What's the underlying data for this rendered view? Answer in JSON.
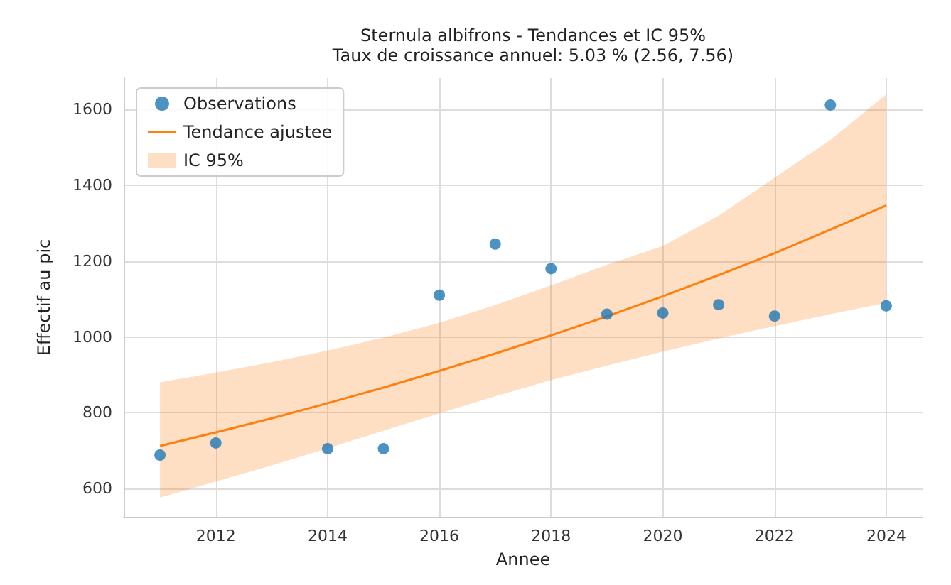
{
  "chart_data": {
    "type": "scatter",
    "title": "Sternula albifrons - Tendances et IC 95%",
    "subtitle": "Taux de croissance annuel: 5.03 % (2.56, 7.56)",
    "xlabel": "Annee",
    "ylabel": "Effectif au pic",
    "x": [
      2011,
      2012,
      2013,
      2014,
      2015,
      2016,
      2017,
      2018,
      2019,
      2020,
      2021,
      2022,
      2023,
      2024
    ],
    "series": [
      {
        "name": "Observations",
        "type": "scatter",
        "color": "#1f77b4",
        "marker": "circle",
        "x": [
          2011,
          2012,
          2014,
          2015,
          2016,
          2017,
          2018,
          2019,
          2020,
          2021,
          2022,
          2023,
          2024
        ],
        "values": [
          688,
          720,
          705,
          705,
          1110,
          1245,
          1180,
          1060,
          1063,
          1085,
          1055,
          1612,
          1082
        ]
      },
      {
        "name": "Tendance ajustee",
        "type": "line",
        "color": "#ff7f0e",
        "marker": "none",
        "values": [
          712,
          748,
          785,
          825,
          866,
          910,
          956,
          1004,
          1054,
          1107,
          1163,
          1221,
          1283,
          1347
        ],
        "lower": [
          576,
          618,
          661,
          706,
          752,
          798,
          843,
          886,
          924,
          961,
          996,
          1028,
          1060,
          1090
        ],
        "upper": [
          880,
          906,
          933,
          964,
          998,
          1037,
          1084,
          1136,
          1190,
          1240,
          1320,
          1420,
          1520,
          1640
        ]
      }
    ],
    "annotations": [
      "IC 95%"
    ],
    "xlim": [
      2010.35,
      2024.65
    ],
    "xticks": [
      2012,
      2014,
      2016,
      2018,
      2020,
      2022,
      2024
    ],
    "ylim": [
      525,
      1683
    ],
    "yticks": [
      600,
      800,
      1000,
      1200,
      1400,
      1600
    ],
    "grid": true,
    "legend": "top left"
  }
}
